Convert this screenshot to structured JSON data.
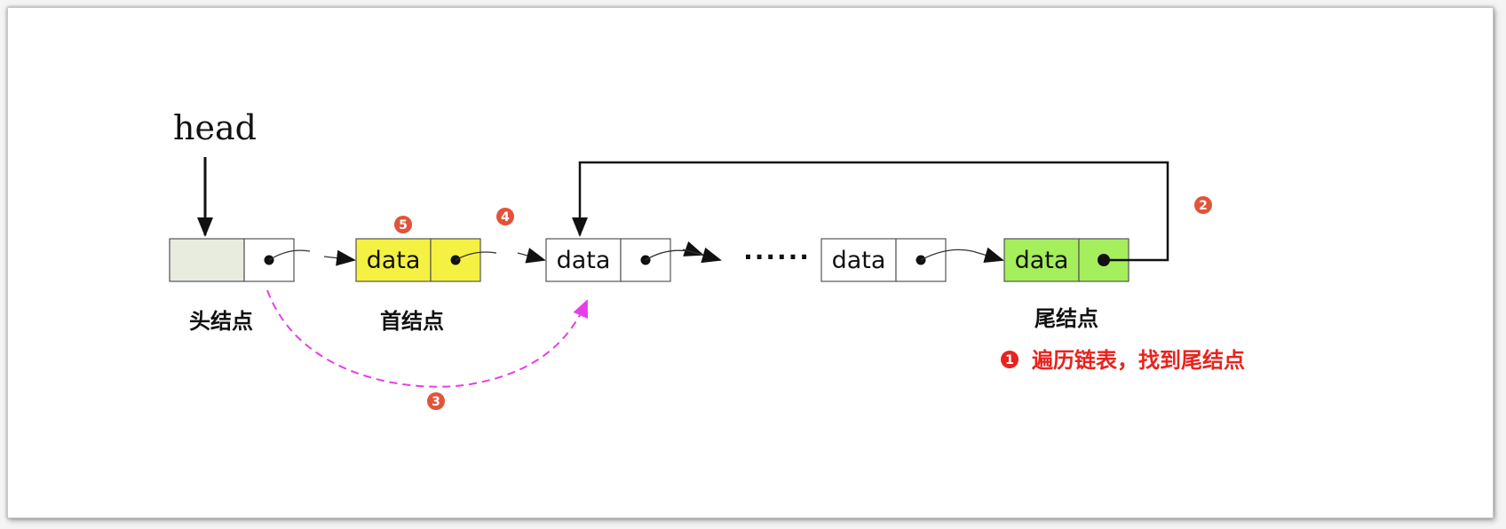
{
  "head_label": "head",
  "nodes": [
    {
      "data": "",
      "caption": "头结点"
    },
    {
      "data": "data",
      "caption": "首结点"
    },
    {
      "data": "data",
      "caption": ""
    },
    {
      "data": "data",
      "caption": ""
    },
    {
      "data": "data",
      "caption": "尾结点"
    }
  ],
  "ellipsis": "······",
  "steps": {
    "s1": {
      "number": "1",
      "text": "遍历链表，找到尾结点"
    },
    "s2": {
      "number": "2"
    },
    "s3": {
      "number": "3"
    },
    "s4": {
      "number": "4"
    },
    "s5": {
      "number": "5"
    }
  },
  "colors": {
    "head_node_fill": "#e8ecdf",
    "first_node_fill": "#f5f142",
    "tail_node_fill": "#a5ee5c",
    "badge_fill": "#e2533a",
    "note_text": "#e8231e",
    "dashed_arrow": "#e63ee8"
  }
}
